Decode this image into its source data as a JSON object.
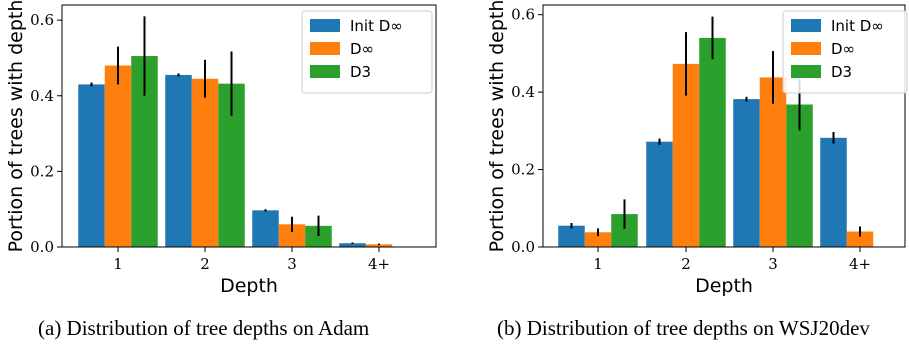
{
  "chart_data": [
    {
      "type": "bar",
      "categories": [
        "1",
        "2",
        "3",
        "4+"
      ],
      "xlabel": "Depth",
      "ylabel": "Portion of trees with depth",
      "ylim": [
        0,
        0.64
      ],
      "yticks": [
        "0.0",
        "0.2",
        "0.4",
        "0.6"
      ],
      "legend_position": "top-right",
      "series": [
        {
          "name": "Init D∞",
          "color": "#1f77b4",
          "values": [
            0.43,
            0.455,
            0.097,
            0.01
          ],
          "errors": [
            0.005,
            0.004,
            0.003,
            0.002
          ]
        },
        {
          "name": "D∞",
          "color": "#ff7f0e",
          "values": [
            0.48,
            0.445,
            0.06,
            0.007
          ],
          "errors": [
            0.05,
            0.05,
            0.02,
            0.002
          ]
        },
        {
          "name": "D3",
          "color": "#2ca02c",
          "values": [
            0.505,
            0.432,
            0.056,
            0.0
          ],
          "errors": [
            0.105,
            0.085,
            0.027,
            0.0
          ]
        }
      ],
      "caption": "(a) Distribution of tree depths on Adam"
    },
    {
      "type": "bar",
      "categories": [
        "1",
        "2",
        "3",
        "4+"
      ],
      "xlabel": "Depth",
      "ylabel": "Portion of trees with depth",
      "ylim": [
        0,
        0.625
      ],
      "yticks": [
        "0.0",
        "0.2",
        "0.4",
        "0.6"
      ],
      "legend_position": "top-right",
      "series": [
        {
          "name": "Init D∞",
          "color": "#1f77b4",
          "values": [
            0.055,
            0.272,
            0.382,
            0.282
          ],
          "errors": [
            0.007,
            0.008,
            0.006,
            0.015
          ]
        },
        {
          "name": "D∞",
          "color": "#ff7f0e",
          "values": [
            0.038,
            0.473,
            0.438,
            0.04
          ],
          "errors": [
            0.01,
            0.082,
            0.068,
            0.013
          ]
        },
        {
          "name": "D3",
          "color": "#2ca02c",
          "values": [
            0.085,
            0.54,
            0.368,
            0.0
          ],
          "errors": [
            0.038,
            0.055,
            0.067,
            0.0
          ]
        }
      ],
      "caption": "(b) Distribution of tree depths on WSJ20dev"
    }
  ]
}
